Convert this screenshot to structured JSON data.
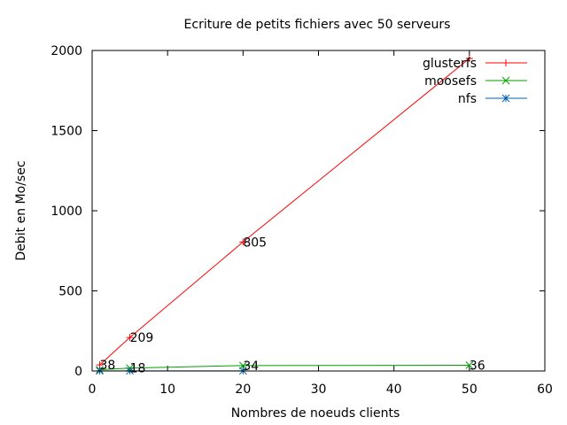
{
  "chart_data": {
    "type": "line",
    "title": "Ecriture de petits fichiers avec 50 serveurs",
    "xlabel": "Nombres de noeuds clients",
    "ylabel": "Debit en Mo/sec",
    "xlim": [
      0,
      60
    ],
    "ylim": [
      0,
      2000
    ],
    "xticks": [
      "0",
      "10",
      "20",
      "30",
      "40",
      "50",
      "60"
    ],
    "yticks": [
      "0",
      "500",
      "1000",
      "1500",
      "2000"
    ],
    "grid": false,
    "legend_position": "top-right",
    "series": [
      {
        "name": "glusterfs",
        "color": "#ff0000",
        "marker": "plus",
        "x": [
          1,
          5,
          20,
          50
        ],
        "y": [
          38,
          209,
          805,
          1950
        ]
      },
      {
        "name": "moosefs",
        "color": "#00a000",
        "marker": "cross",
        "x": [
          1,
          5,
          20,
          50
        ],
        "y": [
          8,
          18,
          34,
          36
        ]
      },
      {
        "name": "nfs",
        "color": "#0060ad",
        "marker": "star",
        "x": [
          1,
          5,
          20
        ],
        "y": [
          1,
          1,
          1
        ]
      }
    ],
    "annotations": [
      {
        "text": "38",
        "x": 1,
        "y": 38
      },
      {
        "text": "209",
        "x": 5,
        "y": 209
      },
      {
        "text": "805",
        "x": 20,
        "y": 805
      },
      {
        "text": "18",
        "x": 5,
        "y": 18
      },
      {
        "text": "34",
        "x": 20,
        "y": 34
      },
      {
        "text": "36",
        "x": 50,
        "y": 36
      }
    ]
  }
}
